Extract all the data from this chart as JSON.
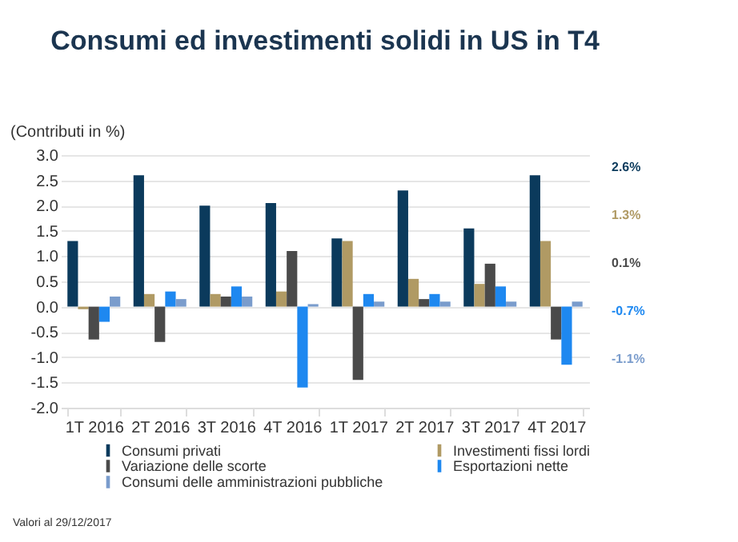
{
  "chart_data": {
    "type": "bar",
    "title": "Consumi ed investimenti solidi in US in T4",
    "ylabel": "(Contributi in %)",
    "categories": [
      "1T 2016",
      "2T 2016",
      "3T 2016",
      "4T 2016",
      "1T 2017",
      "2T 2017",
      "3T 2017",
      "4T 2017"
    ],
    "series": [
      {
        "name": "Consumi privati",
        "color": "#0b3a5c",
        "values": [
          1.3,
          2.6,
          2.0,
          2.05,
          1.35,
          2.3,
          1.55,
          2.6
        ]
      },
      {
        "name": "Investimenti fissi lordi",
        "color": "#b09a64",
        "values": [
          -0.05,
          0.25,
          0.25,
          0.3,
          1.3,
          0.55,
          0.45,
          1.3
        ]
      },
      {
        "name": "Variazione delle scorte",
        "color": "#4a4a4a",
        "values": [
          -0.65,
          -0.7,
          0.2,
          1.1,
          -1.45,
          0.15,
          0.85,
          -0.65
        ]
      },
      {
        "name": "Esportazioni nette",
        "color": "#1e88f0",
        "values": [
          -0.3,
          0.3,
          0.4,
          -1.6,
          0.25,
          0.25,
          0.4,
          -1.15
        ]
      },
      {
        "name": "Consumi delle amministrazioni pubbliche",
        "color": "#7a9ccc",
        "values": [
          0.2,
          0.15,
          0.2,
          0.05,
          0.1,
          0.1,
          0.1,
          0.1
        ]
      }
    ],
    "ylim": [
      -2,
      3
    ],
    "yticks": [
      {
        "value": -2,
        "label": "-2.0"
      },
      -1.5,
      {
        "value": -1,
        "label": "-1.0"
      },
      -0.5,
      {
        "value": 0,
        "label": "0.0"
      },
      0.5,
      {
        "value": 1,
        "label": "1.0"
      },
      1.5,
      {
        "value": 2,
        "label": "2.0"
      },
      2.5,
      {
        "value": 3,
        "label": "3.0"
      }
    ],
    "grid": "y",
    "legend": "bottom",
    "annotations": [
      "2.6%",
      "1.3%",
      "0.1%",
      "-0.7%",
      "-1.1%",
      "Valori al 29/12/2017"
    ]
  }
}
